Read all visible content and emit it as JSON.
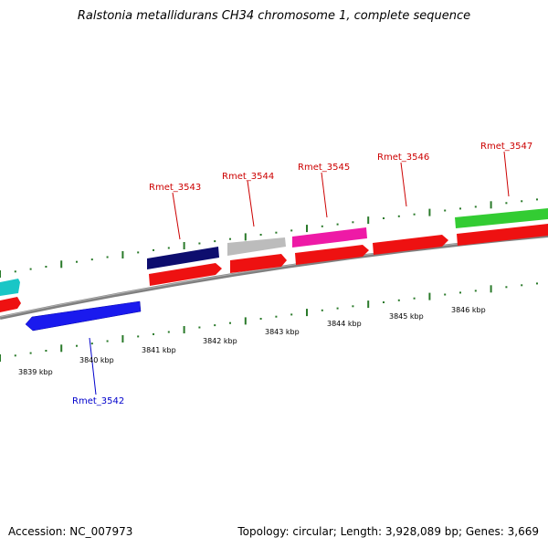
{
  "title": "Ralstonia metallidurans CH34 chromosome 1, complete sequence",
  "footer": {
    "accession": "Accession: NC_007973",
    "topology": "Topology: circular; Length: 3,928,089 bp; Genes: 3,669"
  },
  "colors": {
    "forward_label": "#cc0000",
    "reverse_label": "#0000cc",
    "tick": "#2a7a2a",
    "backbone": "#808080"
  },
  "scale_labels": [
    "3839 kbp",
    "3840 kbp",
    "3841 kbp",
    "3842 kbp",
    "3843 kbp",
    "3844 kbp",
    "3845 kbp",
    "3846 kbp"
  ],
  "gene_labels": {
    "rmet_3542": "Rmet_3542",
    "rmet_3543": "Rmet_3543",
    "rmet_3544": "Rmet_3544",
    "rmet_3545": "Rmet_3545",
    "rmet_3546": "Rmet_3546",
    "rmet_3547": "Rmet_3547"
  },
  "genes": [
    {
      "name": "Rmet_3542",
      "strand": "reverse",
      "color": "#1a1aee"
    },
    {
      "name": "Rmet_3543",
      "strand": "forward",
      "color": "#0d0d6e"
    },
    {
      "name": "Rmet_3544",
      "strand": "forward",
      "color": "#bcbcbc"
    },
    {
      "name": "Rmet_3545",
      "strand": "forward",
      "color": "#ee1aa6"
    },
    {
      "name": "Rmet_3546",
      "strand": "forward",
      "color": "#ee1111"
    },
    {
      "name": "Rmet_3547",
      "strand": "forward",
      "color": "#33cc33"
    }
  ]
}
